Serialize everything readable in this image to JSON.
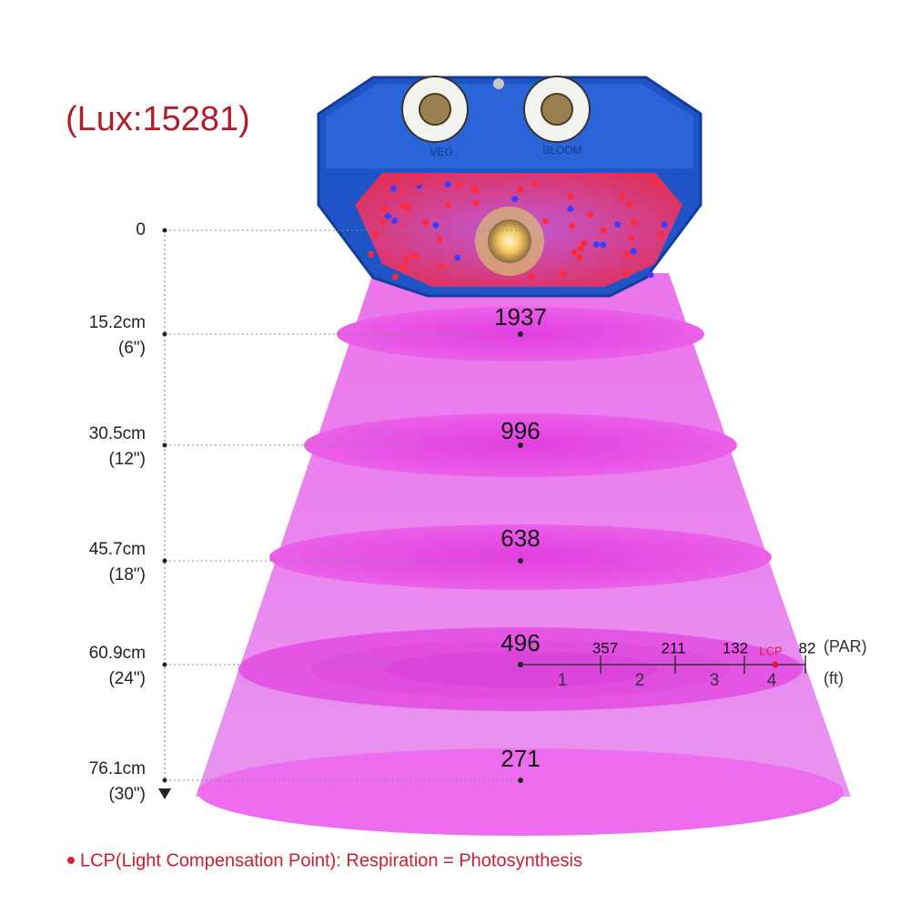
{
  "lux_label": "(Lux:15281)",
  "levels": [
    {
      "cm": "0"
    },
    {
      "cm": "15.2cm",
      "inch": "(6\")",
      "par": "1937"
    },
    {
      "cm": "30.5cm",
      "inch": "(12\")",
      "par": "996"
    },
    {
      "cm": "45.7cm",
      "inch": "(18\")",
      "par": "638"
    },
    {
      "cm": "60.9cm",
      "inch": "(24\")",
      "par": "496"
    },
    {
      "cm": "76.1cm",
      "inch": "(30\")",
      "par": "271"
    }
  ],
  "spread": {
    "par_values": [
      "357",
      "211",
      "132",
      "82"
    ],
    "par_unit": "(PAR)",
    "feet": [
      "1",
      "2",
      "3",
      "4"
    ],
    "feet_unit": "(ft)",
    "lcp_marker": "LCP"
  },
  "knobs": [
    "VEG",
    "BLOOM"
  ],
  "footnote": "LCP(Light Compensation Point): Respiration = Photosynthesis"
}
